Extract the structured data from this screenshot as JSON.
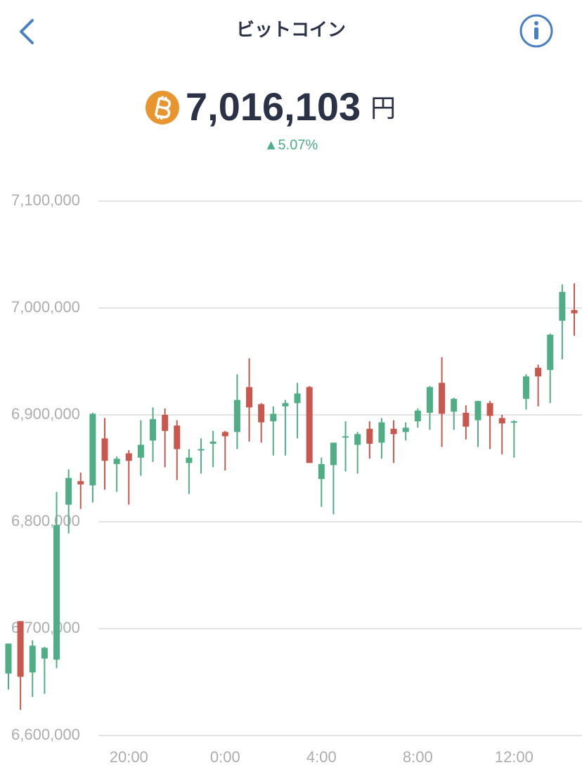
{
  "header": {
    "title": "ビットコイン",
    "price": "7,016,103",
    "unit": "円",
    "change": "▲5.07%"
  },
  "chart_data": {
    "type": "candlestick",
    "categories": [
      null,
      null,
      null,
      null,
      null,
      null,
      null,
      null,
      null,
      null,
      "20:00",
      null,
      null,
      null,
      null,
      null,
      null,
      null,
      "0:00",
      null,
      null,
      null,
      null,
      null,
      null,
      null,
      "4:00",
      null,
      null,
      null,
      null,
      null,
      null,
      null,
      "8:00",
      null,
      null,
      null,
      null,
      null,
      null,
      null,
      "12:00",
      null,
      null,
      null,
      null,
      null
    ],
    "open": [
      6658000,
      6707000,
      6659000,
      6672000,
      6671000,
      6816000,
      6838000,
      6834000,
      6878000,
      6854000,
      6864000,
      6860000,
      6876000,
      6900000,
      6890000,
      6855000,
      6867000,
      6873000,
      6884000,
      6884000,
      6926000,
      6910000,
      6894000,
      6908000,
      6911000,
      6926000,
      6840000,
      6853000,
      6879000,
      6872000,
      6887000,
      6874000,
      6887000,
      6884000,
      6894000,
      6902000,
      6930000,
      6903000,
      6902000,
      6895000,
      6911000,
      6897000,
      6893000,
      6915000,
      6944000,
      6942000,
      6988000,
      6998000
    ],
    "high": [
      6686000,
      6707000,
      6689000,
      6683000,
      6828000,
      6849000,
      6846000,
      6902000,
      6897000,
      6861000,
      6867000,
      6895000,
      6907000,
      6906000,
      6895000,
      6868000,
      6878000,
      6885000,
      6885000,
      6938000,
      6953000,
      6911000,
      6908000,
      6914000,
      6930000,
      6927000,
      6860000,
      6874000,
      6894000,
      6884000,
      6894000,
      6897000,
      6895000,
      6893000,
      6906000,
      6927000,
      6954000,
      6916000,
      6909000,
      6913000,
      6913000,
      6900000,
      6895000,
      6938000,
      6947000,
      6976000,
      7022000,
      7023000
    ],
    "low": [
      6643000,
      6624000,
      6636000,
      6639000,
      6663000,
      6789000,
      6812000,
      6818000,
      6830000,
      6828000,
      6816000,
      6843000,
      6856000,
      6851000,
      6839000,
      6826000,
      6845000,
      6851000,
      6848000,
      6868000,
      6875000,
      6874000,
      6862000,
      6862000,
      6878000,
      6855000,
      6814000,
      6807000,
      6847000,
      6845000,
      6859000,
      6859000,
      6855000,
      6876000,
      6888000,
      6886000,
      6870000,
      6886000,
      6877000,
      6870000,
      6868000,
      6863000,
      6860000,
      6905000,
      6908000,
      6911000,
      6952000,
      6974000
    ],
    "close": [
      6686000,
      6655000,
      6684000,
      6682000,
      6797000,
      6841000,
      6835000,
      6901000,
      6857000,
      6859000,
      6857000,
      6872000,
      6896000,
      6885000,
      6868000,
      6860000,
      6868000,
      6875000,
      6880000,
      6914000,
      6907000,
      6893000,
      6901000,
      6911000,
      6920000,
      6855000,
      6854000,
      6874000,
      6880000,
      6882000,
      6873000,
      6893000,
      6882000,
      6888000,
      6904000,
      6926000,
      6901000,
      6915000,
      6889000,
      6913000,
      6899000,
      6892000,
      6894000,
      6936000,
      6936000,
      6975000,
      7015000,
      6995000
    ],
    "up_color": "#4fae86",
    "down_color": "#c8574d",
    "ylim": [
      6600000,
      7100000
    ],
    "yticks": [
      {
        "value": 6600000,
        "label": "6,600,000"
      },
      {
        "value": 6700000,
        "label": "6,700,000"
      },
      {
        "value": 6800000,
        "label": "6,800,000"
      },
      {
        "value": 6900000,
        "label": "6,900,000"
      },
      {
        "value": 7000000,
        "label": "7,000,000"
      },
      {
        "value": 7100000,
        "label": "7,100,000"
      }
    ],
    "grid": true
  }
}
